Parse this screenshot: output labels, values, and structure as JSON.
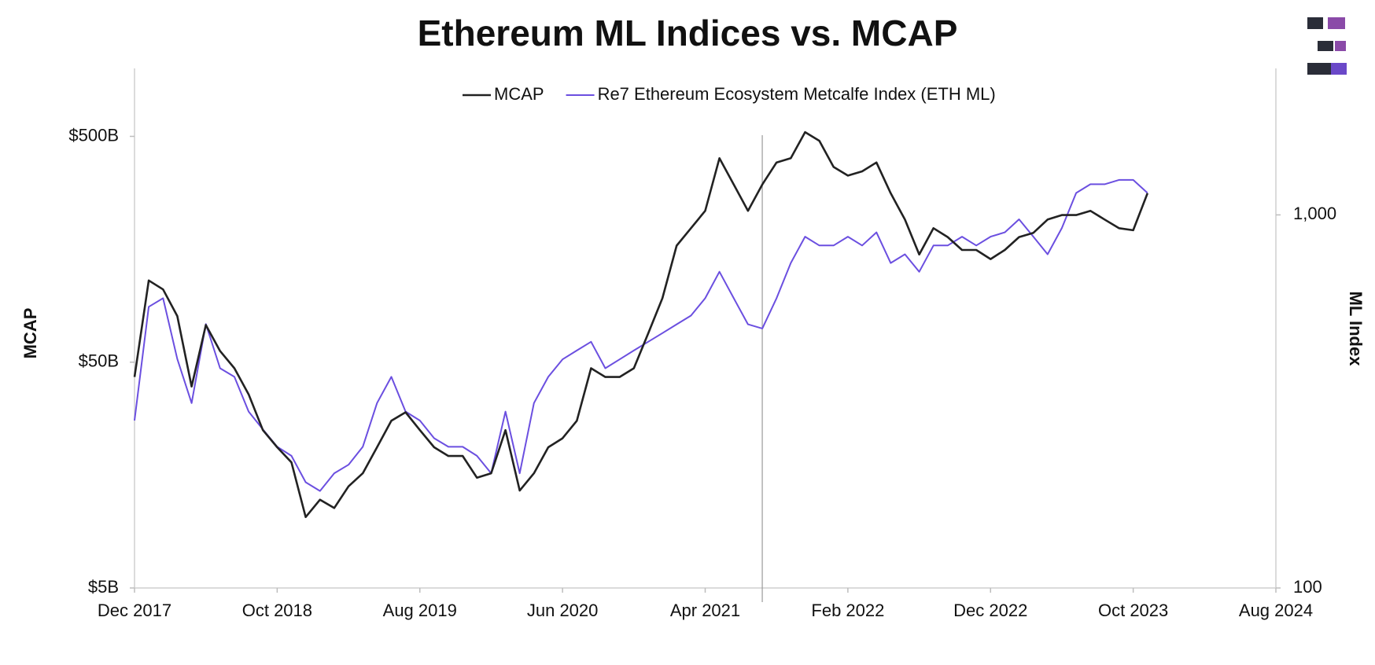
{
  "chart_data": {
    "type": "line",
    "title": "Ethereum ML Indices vs. MCAP",
    "ylabel": "MCAP",
    "y2label": "ML Index",
    "log_y": true,
    "log_y2": true,
    "legend": "top",
    "vline_x": "2021-08",
    "x": [
      "2017-12",
      "2018-01",
      "2018-02",
      "2018-03",
      "2018-04",
      "2018-05",
      "2018-06",
      "2018-07",
      "2018-08",
      "2018-09",
      "2018-10",
      "2018-11",
      "2018-12",
      "2019-01",
      "2019-02",
      "2019-03",
      "2019-04",
      "2019-05",
      "2019-06",
      "2019-07",
      "2019-08",
      "2019-09",
      "2019-10",
      "2019-11",
      "2019-12",
      "2020-01",
      "2020-02",
      "2020-03",
      "2020-04",
      "2020-05",
      "2020-06",
      "2020-07",
      "2020-08",
      "2020-09",
      "2020-10",
      "2020-11",
      "2020-12",
      "2021-01",
      "2021-02",
      "2021-03",
      "2021-04",
      "2021-05",
      "2021-06",
      "2021-07",
      "2021-08",
      "2021-09",
      "2021-10",
      "2021-11",
      "2021-12",
      "2022-01",
      "2022-02",
      "2022-03",
      "2022-04",
      "2022-05",
      "2022-06",
      "2022-07",
      "2022-08",
      "2022-09",
      "2022-10",
      "2022-11",
      "2022-12",
      "2023-01",
      "2023-02",
      "2023-03",
      "2023-04",
      "2023-05",
      "2023-06",
      "2023-07",
      "2023-08",
      "2023-09",
      "2023-10",
      "2023-11"
    ],
    "series": [
      {
        "name": "MCAP",
        "color": "#222222",
        "axis": "y",
        "values": [
          43,
          115,
          105,
          80,
          39,
          73,
          56,
          47,
          36,
          25,
          21,
          18,
          10.3,
          12.3,
          11.3,
          14.1,
          16.1,
          21,
          27.5,
          30,
          25,
          21,
          19.2,
          19.2,
          15.4,
          16.1,
          25,
          13.5,
          16.1,
          21,
          23,
          27.5,
          47,
          43,
          43,
          47,
          67,
          96,
          164,
          196,
          234,
          400,
          306,
          234,
          306,
          383,
          400,
          522,
          478,
          366,
          335,
          350,
          383,
          280,
          214,
          150,
          196,
          179,
          157,
          157,
          143,
          157,
          179,
          187,
          214,
          224,
          224,
          234,
          214,
          196,
          192,
          280
        ]
      },
      {
        "name": "Re7 Ethereum Ecosystem Metcalfe Index (ETH ML)",
        "color": "#6b4fe0",
        "axis": "y2",
        "values": [
          281,
          567,
          598,
          411,
          313,
          510,
          388,
          368,
          297,
          266,
          239,
          226,
          192,
          182,
          203,
          214,
          239,
          313,
          368,
          297,
          281,
          252,
          239,
          239,
          226,
          203,
          297,
          203,
          313,
          368,
          410,
          433,
          457,
          388,
          410,
          433,
          457,
          482,
          509,
          537,
          598,
          704,
          598,
          509,
          496,
          598,
          743,
          874,
          828,
          828,
          874,
          828,
          898,
          743,
          784,
          704,
          828,
          828,
          874,
          828,
          874,
          898,
          973,
          874,
          784,
          922,
          1145,
          1208,
          1208,
          1241,
          1241,
          1145
        ]
      }
    ],
    "xlim": [
      "2017-12",
      "2024-08"
    ],
    "xticks": [
      {
        "value": "2017-12",
        "label": "Dec 2017"
      },
      {
        "value": "2018-10",
        "label": "Oct 2018"
      },
      {
        "value": "2019-08",
        "label": "Aug 2019"
      },
      {
        "value": "2020-06",
        "label": "Jun 2020"
      },
      {
        "value": "2021-04",
        "label": "Apr 2021"
      },
      {
        "value": "2022-02",
        "label": "Feb 2022"
      },
      {
        "value": "2022-12",
        "label": "Dec 2022"
      },
      {
        "value": "2023-10",
        "label": "Oct 2023"
      },
      {
        "value": "2024-08",
        "label": "Aug 2024"
      }
    ],
    "ylim": [
      5,
      1000
    ],
    "yticks": [
      {
        "value": 5,
        "label": "$5B"
      },
      {
        "value": 50,
        "label": "$50B"
      },
      {
        "value": 500,
        "label": "$500B"
      }
    ],
    "y2lim": [
      100,
      2470
    ],
    "y2ticks": [
      100,
      {
        "value": 1000,
        "label": "1,000"
      }
    ]
  }
}
